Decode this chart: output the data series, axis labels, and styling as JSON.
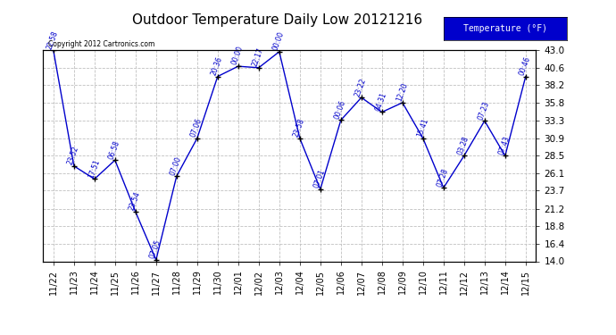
{
  "title": "Outdoor Temperature Daily Low 20121216",
  "copyright": "Copyright 2012 Cartronics.com",
  "legend_label": "Temperature (°F)",
  "x_labels": [
    "11/22",
    "11/23",
    "11/24",
    "11/25",
    "11/26",
    "11/27",
    "11/28",
    "11/29",
    "11/30",
    "12/01",
    "12/02",
    "12/03",
    "12/04",
    "12/05",
    "12/06",
    "12/07",
    "12/08",
    "12/09",
    "12/10",
    "12/11",
    "12/12",
    "12/13",
    "12/14",
    "12/15"
  ],
  "y_values": [
    43.0,
    27.1,
    25.3,
    27.9,
    20.8,
    14.2,
    25.7,
    30.9,
    39.4,
    40.8,
    40.6,
    42.8,
    30.9,
    23.9,
    33.4,
    36.5,
    34.5,
    35.8,
    30.9,
    24.1,
    28.5,
    33.3,
    28.5,
    39.4
  ],
  "time_labels": [
    "22:58",
    "23:52",
    "17:51",
    "06:58",
    "23:54",
    "07:05",
    "07:00",
    "07:06",
    "20:36",
    "00:00",
    "22:17",
    "00:00",
    "23:58",
    "07:01",
    "00:06",
    "23:22",
    "04:31",
    "12:20",
    "15:41",
    "07:28",
    "03:28",
    "07:23",
    "07:43",
    "00:46"
  ],
  "ylim": [
    14.0,
    43.0
  ],
  "yticks": [
    14.0,
    16.4,
    18.8,
    21.2,
    23.7,
    26.1,
    28.5,
    30.9,
    33.3,
    35.8,
    38.2,
    40.6,
    43.0
  ],
  "line_color": "#0000cc",
  "marker_color": "#000000",
  "bg_color": "#ffffff",
  "grid_color": "#c0c0c0",
  "title_fontsize": 11,
  "legend_bg": "#0000cc",
  "legend_fg": "#ffffff"
}
